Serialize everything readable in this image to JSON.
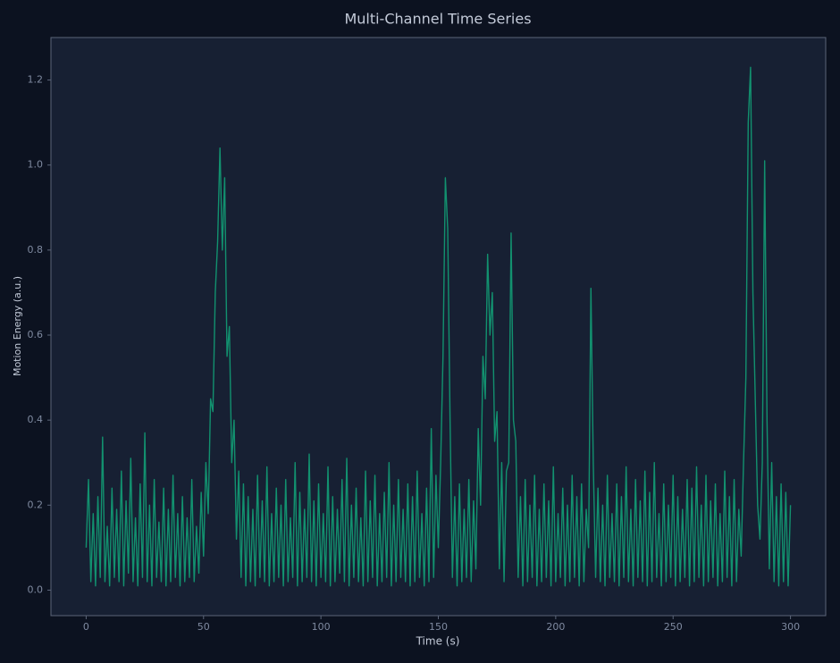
{
  "chart_data": {
    "type": "line",
    "title": "Multi-Channel Time Series",
    "xlabel": "Time (s)",
    "ylabel": "Motion Energy (a.u.)",
    "xlim": [
      -15,
      315
    ],
    "ylim": [
      -0.06,
      1.3
    ],
    "xticks": [
      0,
      50,
      100,
      150,
      200,
      250,
      300
    ],
    "yticks": [
      {
        "value": 0,
        "label": "0.0"
      },
      0.2,
      0.4,
      0.6,
      0.8,
      {
        "value": 1,
        "label": "1.0"
      },
      1.2
    ],
    "grid": false,
    "x": [
      0,
      1,
      2,
      3,
      4,
      5,
      6,
      7,
      8,
      9,
      10,
      11,
      12,
      13,
      14,
      15,
      16,
      17,
      18,
      19,
      20,
      21,
      22,
      23,
      24,
      25,
      26,
      27,
      28,
      29,
      30,
      31,
      32,
      33,
      34,
      35,
      36,
      37,
      38,
      39,
      40,
      41,
      42,
      43,
      44,
      45,
      46,
      47,
      48,
      49,
      50,
      51,
      52,
      53,
      54,
      55,
      56,
      57,
      58,
      59,
      60,
      61,
      62,
      63,
      64,
      65,
      66,
      67,
      68,
      69,
      70,
      71,
      72,
      73,
      74,
      75,
      76,
      77,
      78,
      79,
      80,
      81,
      82,
      83,
      84,
      85,
      86,
      87,
      88,
      89,
      90,
      91,
      92,
      93,
      94,
      95,
      96,
      97,
      98,
      99,
      100,
      101,
      102,
      103,
      104,
      105,
      106,
      107,
      108,
      109,
      110,
      111,
      112,
      113,
      114,
      115,
      116,
      117,
      118,
      119,
      120,
      121,
      122,
      123,
      124,
      125,
      126,
      127,
      128,
      129,
      130,
      131,
      132,
      133,
      134,
      135,
      136,
      137,
      138,
      139,
      140,
      141,
      142,
      143,
      144,
      145,
      146,
      147,
      148,
      149,
      150,
      151,
      152,
      153,
      154,
      155,
      156,
      157,
      158,
      159,
      160,
      161,
      162,
      163,
      164,
      165,
      166,
      167,
      168,
      169,
      170,
      171,
      172,
      173,
      174,
      175,
      176,
      177,
      178,
      179,
      180,
      181,
      182,
      183,
      184,
      185,
      186,
      187,
      188,
      189,
      190,
      191,
      192,
      193,
      194,
      195,
      196,
      197,
      198,
      199,
      200,
      201,
      202,
      203,
      204,
      205,
      206,
      207,
      208,
      209,
      210,
      211,
      212,
      213,
      214,
      215,
      216,
      217,
      218,
      219,
      220,
      221,
      222,
      223,
      224,
      225,
      226,
      227,
      228,
      229,
      230,
      231,
      232,
      233,
      234,
      235,
      236,
      237,
      238,
      239,
      240,
      241,
      242,
      243,
      244,
      245,
      246,
      247,
      248,
      249,
      250,
      251,
      252,
      253,
      254,
      255,
      256,
      257,
      258,
      259,
      260,
      261,
      262,
      263,
      264,
      265,
      266,
      267,
      268,
      269,
      270,
      271,
      272,
      273,
      274,
      275,
      276,
      277,
      278,
      279,
      280,
      281,
      282,
      283,
      284,
      285,
      286,
      287,
      288,
      289,
      290,
      291,
      292,
      293,
      294,
      295,
      296,
      297,
      298,
      299,
      300
    ],
    "series": [
      {
        "color": "#12916f",
        "values": [
          0.1,
          0.26,
          0.02,
          0.18,
          0.01,
          0.22,
          0.03,
          0.36,
          0.02,
          0.15,
          0.01,
          0.24,
          0.03,
          0.19,
          0.02,
          0.28,
          0.01,
          0.21,
          0.04,
          0.31,
          0.02,
          0.17,
          0.01,
          0.25,
          0.03,
          0.37,
          0.02,
          0.2,
          0.01,
          0.26,
          0.03,
          0.16,
          0.02,
          0.24,
          0.01,
          0.19,
          0.02,
          0.27,
          0.03,
          0.18,
          0.01,
          0.22,
          0.02,
          0.17,
          0.03,
          0.26,
          0.02,
          0.15,
          0.04,
          0.23,
          0.08,
          0.3,
          0.18,
          0.45,
          0.42,
          0.7,
          0.82,
          1.04,
          0.8,
          0.97,
          0.55,
          0.62,
          0.3,
          0.4,
          0.12,
          0.28,
          0.03,
          0.25,
          0.01,
          0.22,
          0.02,
          0.19,
          0.01,
          0.27,
          0.03,
          0.21,
          0.02,
          0.29,
          0.01,
          0.18,
          0.02,
          0.24,
          0.03,
          0.2,
          0.01,
          0.26,
          0.02,
          0.17,
          0.03,
          0.3,
          0.01,
          0.23,
          0.02,
          0.19,
          0.03,
          0.32,
          0.02,
          0.21,
          0.01,
          0.25,
          0.03,
          0.18,
          0.02,
          0.29,
          0.01,
          0.22,
          0.02,
          0.19,
          0.04,
          0.26,
          0.02,
          0.31,
          0.01,
          0.2,
          0.03,
          0.24,
          0.02,
          0.17,
          0.01,
          0.28,
          0.02,
          0.21,
          0.03,
          0.27,
          0.01,
          0.18,
          0.02,
          0.23,
          0.03,
          0.3,
          0.01,
          0.2,
          0.02,
          0.26,
          0.03,
          0.19,
          0.02,
          0.25,
          0.01,
          0.22,
          0.02,
          0.28,
          0.03,
          0.18,
          0.01,
          0.24,
          0.02,
          0.38,
          0.03,
          0.27,
          0.1,
          0.3,
          0.55,
          0.97,
          0.85,
          0.4,
          0.03,
          0.22,
          0.01,
          0.25,
          0.02,
          0.19,
          0.03,
          0.26,
          0.02,
          0.21,
          0.05,
          0.38,
          0.2,
          0.55,
          0.45,
          0.79,
          0.6,
          0.7,
          0.35,
          0.42,
          0.05,
          0.3,
          0.02,
          0.28,
          0.3,
          0.84,
          0.4,
          0.35,
          0.03,
          0.22,
          0.01,
          0.26,
          0.02,
          0.2,
          0.03,
          0.27,
          0.01,
          0.19,
          0.02,
          0.25,
          0.03,
          0.21,
          0.01,
          0.29,
          0.02,
          0.18,
          0.03,
          0.24,
          0.01,
          0.2,
          0.02,
          0.27,
          0.03,
          0.22,
          0.01,
          0.25,
          0.02,
          0.19,
          0.1,
          0.71,
          0.3,
          0.03,
          0.24,
          0.02,
          0.2,
          0.01,
          0.27,
          0.03,
          0.18,
          0.02,
          0.25,
          0.01,
          0.22,
          0.03,
          0.29,
          0.02,
          0.19,
          0.01,
          0.26,
          0.03,
          0.21,
          0.02,
          0.28,
          0.01,
          0.23,
          0.02,
          0.3,
          0.03,
          0.18,
          0.01,
          0.25,
          0.02,
          0.2,
          0.03,
          0.27,
          0.01,
          0.22,
          0.02,
          0.19,
          0.03,
          0.26,
          0.01,
          0.24,
          0.02,
          0.29,
          0.03,
          0.2,
          0.01,
          0.27,
          0.02,
          0.21,
          0.03,
          0.25,
          0.01,
          0.18,
          0.02,
          0.28,
          0.03,
          0.22,
          0.01,
          0.26,
          0.02,
          0.19,
          0.08,
          0.3,
          0.5,
          1.1,
          1.23,
          0.7,
          0.45,
          0.2,
          0.12,
          0.3,
          1.01,
          0.4,
          0.05,
          0.3,
          0.02,
          0.22,
          0.01,
          0.25,
          0.02,
          0.23,
          0.01,
          0.2
        ]
      }
    ]
  }
}
